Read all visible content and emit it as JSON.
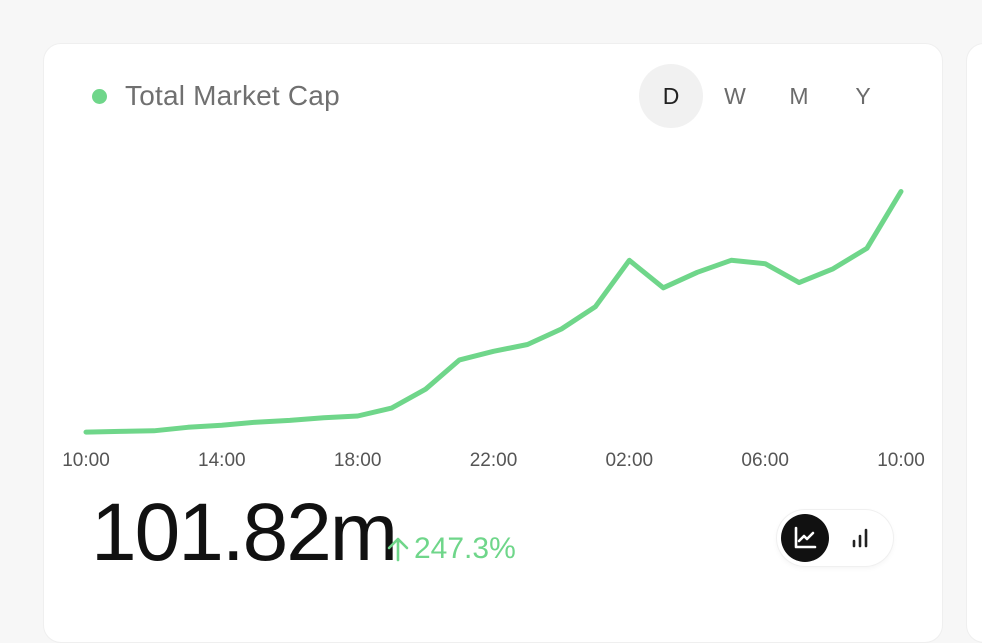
{
  "legend": {
    "label": "Total Market Cap",
    "color": "#6fd68a"
  },
  "period_tabs": [
    {
      "label": "D",
      "active": true
    },
    {
      "label": "W",
      "active": false
    },
    {
      "label": "M",
      "active": false
    },
    {
      "label": "Y",
      "active": false
    }
  ],
  "summary": {
    "value": "101.82m",
    "change": "247.3%",
    "change_direction": "up",
    "change_color": "#6fd68a"
  },
  "view_toggle": [
    {
      "icon": "line-chart-icon",
      "active": true
    },
    {
      "icon": "bar-chart-icon",
      "active": false
    }
  ],
  "chart_data": {
    "type": "line",
    "x_tick_labels": [
      "10:00",
      "14:00",
      "18:00",
      "22:00",
      "02:00",
      "06:00",
      "10:00"
    ],
    "x_hours": [
      0,
      1,
      2,
      3,
      4,
      5,
      6,
      7,
      8,
      9,
      10,
      11,
      12,
      13,
      14,
      15,
      16,
      17,
      18,
      19,
      20,
      21,
      22,
      23,
      24
    ],
    "series": [
      {
        "color": "#6fd68a",
        "values": [
          2.0,
          2.2,
          2.4,
          3.4,
          4.0,
          4.9,
          5.4,
          6.2,
          6.7,
          9.0,
          14.5,
          23.0,
          25.5,
          27.5,
          32.0,
          38.5,
          52.0,
          44.0,
          48.5,
          52.0,
          51.0,
          45.5,
          49.5,
          55.5,
          72.0
        ]
      }
    ],
    "ylim": [
      0,
      80
    ],
    "grid": false,
    "legend_position": "top-left"
  }
}
